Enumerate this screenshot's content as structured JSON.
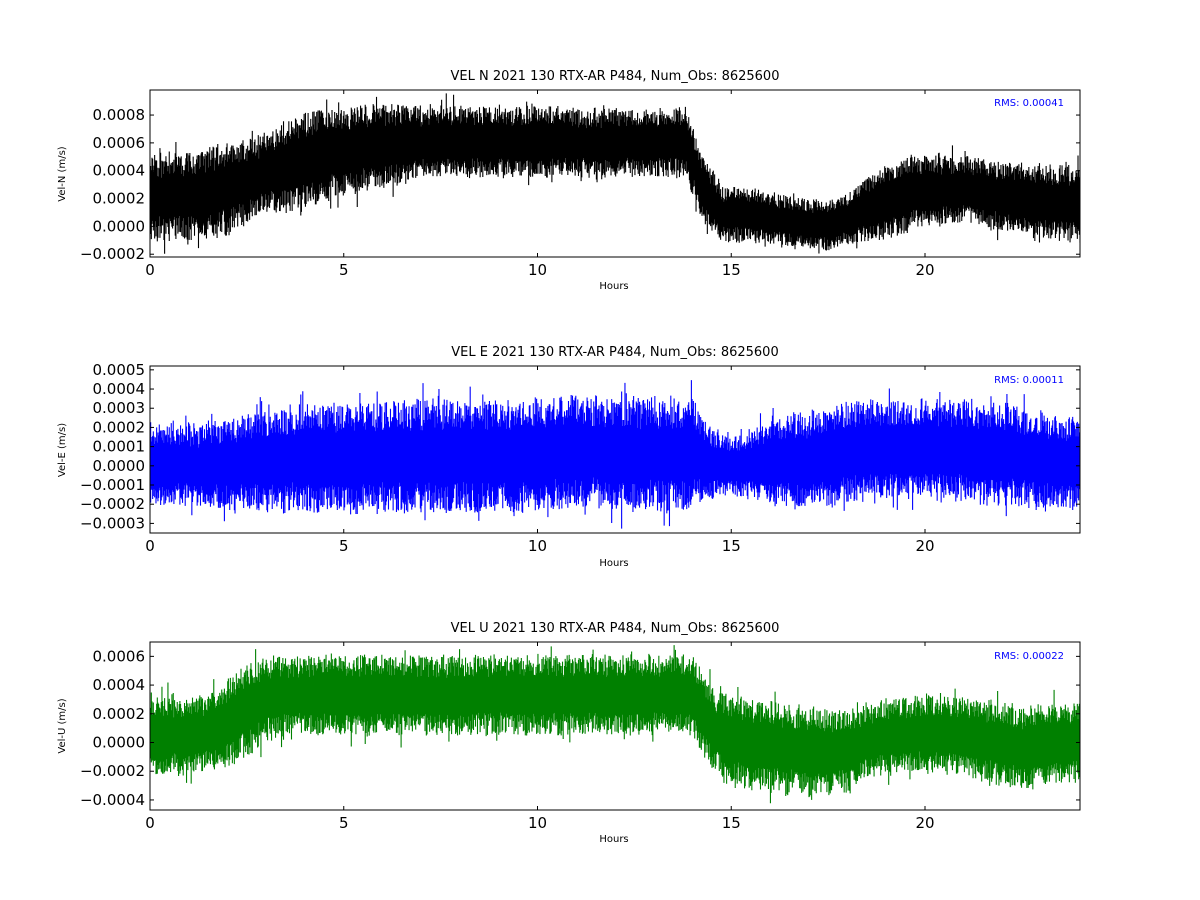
{
  "chart_data": [
    {
      "type": "line",
      "title": "VEL N 2021 130 RTX-AR  P484, Num_Obs: 8625600",
      "xlabel": "Hours",
      "ylabel": "Vel-N (m/s)",
      "color": "#000000",
      "xlim": [
        0,
        24
      ],
      "ylim": [
        -0.00022,
        0.00098
      ],
      "xticks": [
        0,
        5,
        10,
        15,
        20
      ],
      "xtick_labels": [
        "0",
        "5",
        "10",
        "15",
        "20"
      ],
      "yticks": [
        -0.0002,
        0.0,
        0.0002,
        0.0004,
        0.0006,
        0.0008
      ],
      "ytick_labels": [
        "−0.0002",
        "0.0000",
        "0.0002",
        "0.0004",
        "0.0006",
        "0.0008"
      ],
      "annotation": "RMS:  0.00041",
      "annotation_color": "#0000ff",
      "grid": false,
      "series": [
        {
          "x": [
            0,
            1,
            2,
            3,
            4,
            5,
            6,
            7,
            8,
            9,
            10,
            11,
            12,
            13,
            13.8,
            14.3,
            14.8,
            15.5,
            16,
            17,
            17.5,
            18,
            18.5,
            19,
            20,
            21,
            22,
            23,
            24
          ],
          "upper": [
            0.00052,
            0.00056,
            0.00062,
            0.00068,
            0.00085,
            0.00088,
            0.0009,
            0.00088,
            0.00088,
            0.00088,
            0.00088,
            0.00086,
            0.00086,
            0.00086,
            0.00088,
            0.0005,
            0.0003,
            0.00028,
            0.00026,
            0.0002,
            0.0002,
            0.00024,
            0.00038,
            0.00046,
            0.00054,
            0.00052,
            0.00048,
            0.00046,
            0.00044
          ],
          "lower": [
            -0.00012,
            -0.00012,
            -8e-05,
            8e-05,
            0.0001,
            0.0002,
            0.00026,
            0.00032,
            0.00034,
            0.00034,
            0.00034,
            0.00034,
            0.00034,
            0.00034,
            0.00034,
            0.0,
            -0.00012,
            -0.00012,
            -0.00014,
            -0.00016,
            -0.00018,
            -0.00014,
            -0.00012,
            -0.00012,
            -2e-05,
            2e-05,
            -6e-05,
            -0.0001,
            -0.00012
          ]
        }
      ]
    },
    {
      "type": "line",
      "title": "VEL E 2021 130 RTX-AR  P484, Num_Obs: 8625600",
      "xlabel": "Hours",
      "ylabel": "Vel-E (m/s)",
      "color": "#0000ff",
      "xlim": [
        0,
        24
      ],
      "ylim": [
        -0.00035,
        0.00052
      ],
      "xticks": [
        0,
        5,
        10,
        15,
        20
      ],
      "xtick_labels": [
        "0",
        "5",
        "10",
        "15",
        "20"
      ],
      "yticks": [
        -0.0003,
        -0.0002,
        -0.0001,
        0.0,
        0.0001,
        0.0002,
        0.0003,
        0.0004,
        0.0005
      ],
      "ytick_labels": [
        "−0.0003",
        "−0.0002",
        "−0.0001",
        "0.0000",
        "0.0001",
        "0.0002",
        "0.0003",
        "0.0004",
        "0.0005"
      ],
      "annotation": "RMS:  0.00011",
      "annotation_color": "#0000ff",
      "grid": false,
      "series": [
        {
          "x": [
            0,
            1,
            2,
            3,
            4,
            5,
            6,
            7,
            8,
            9,
            10,
            11,
            12,
            13,
            14,
            14.5,
            15,
            15.5,
            16,
            17,
            18,
            19,
            20,
            21,
            22,
            23,
            24
          ],
          "upper": [
            0.00024,
            0.00022,
            0.00026,
            0.0003,
            0.00034,
            0.00034,
            0.00034,
            0.00036,
            0.00036,
            0.00036,
            0.00036,
            0.00038,
            0.00036,
            0.00038,
            0.00036,
            0.0002,
            0.00016,
            0.00018,
            0.00026,
            0.0003,
            0.00036,
            0.00036,
            0.00036,
            0.00036,
            0.00034,
            0.0003,
            0.00028
          ],
          "lower": [
            -0.00022,
            -0.00022,
            -0.00024,
            -0.00026,
            -0.00026,
            -0.00026,
            -0.00026,
            -0.00026,
            -0.00026,
            -0.00026,
            -0.00026,
            -0.00024,
            -0.00024,
            -0.00026,
            -0.00024,
            -0.00018,
            -0.00016,
            -0.00018,
            -0.00022,
            -0.00024,
            -0.00022,
            -0.0002,
            -0.00018,
            -0.0002,
            -0.00022,
            -0.00024,
            -0.00024
          ]
        }
      ]
    },
    {
      "type": "line",
      "title": "VEL U 2021 130 RTX-AR  P484, Num_Obs: 8625600",
      "xlabel": "Hours",
      "ylabel": "Vel-U (m/s)",
      "color": "#008000",
      "xlim": [
        0,
        24
      ],
      "ylim": [
        -0.00047,
        0.0007
      ],
      "xticks": [
        0,
        5,
        10,
        15,
        20
      ],
      "xtick_labels": [
        "0",
        "5",
        "10",
        "15",
        "20"
      ],
      "yticks": [
        -0.0004,
        -0.0002,
        0.0,
        0.0002,
        0.0004,
        0.0006
      ],
      "ytick_labels": [
        "−0.0004",
        "−0.0002",
        "0.0000",
        "0.0002",
        "0.0004",
        "0.0006"
      ],
      "annotation": "RMS:  0.00022",
      "annotation_color": "#0000ff",
      "grid": false,
      "series": [
        {
          "x": [
            0,
            1,
            1.5,
            2,
            2.5,
            3,
            4,
            5,
            6,
            7,
            8,
            9,
            10,
            11,
            12,
            13,
            14,
            14.5,
            15,
            16,
            17,
            18,
            18.5,
            19,
            20,
            21,
            22,
            22.5,
            23,
            24
          ],
          "upper": [
            0.00034,
            0.00034,
            0.00036,
            0.00046,
            0.00058,
            0.00062,
            0.00062,
            0.00062,
            0.00062,
            0.00062,
            0.00062,
            0.00062,
            0.00062,
            0.00062,
            0.00062,
            0.00062,
            0.00062,
            0.0004,
            0.00034,
            0.00032,
            0.00026,
            0.00024,
            0.00028,
            0.00032,
            0.00034,
            0.00034,
            0.0003,
            0.00024,
            0.0003,
            0.0003
          ],
          "lower": [
            -0.00024,
            -0.00024,
            -0.00022,
            -0.0002,
            -0.00012,
            0.0,
            4e-05,
            4e-05,
            4e-05,
            4e-05,
            4e-05,
            4e-05,
            4e-05,
            4e-05,
            4e-05,
            4e-05,
            4e-05,
            -0.0002,
            -0.00032,
            -0.00036,
            -0.0004,
            -0.00036,
            -0.00026,
            -0.00024,
            -0.00022,
            -0.00024,
            -0.00032,
            -0.00034,
            -0.00032,
            -0.0003
          ]
        }
      ]
    }
  ]
}
